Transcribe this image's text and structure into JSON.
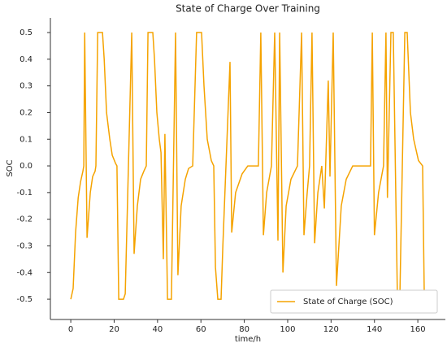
{
  "chart_data": {
    "type": "line",
    "title": "State of Charge Over Training",
    "xlabel": "time/h",
    "ylabel": "SOC",
    "x": [
      0,
      1.1,
      2.2,
      3.4,
      4.5,
      5.6,
      6,
      6.4,
      7.5,
      9,
      10.1,
      11.2,
      11.6,
      12.4,
      14.6,
      15.4,
      16.5,
      18,
      19.1,
      20.6,
      21.3,
      22.1,
      24.3,
      25.1,
      28.1,
      29.2,
      30.7,
      32.2,
      33.7,
      34.8,
      35.6,
      37.8,
      38.6,
      39.7,
      40.8,
      41.6,
      42.7,
      43.4,
      44.6,
      46.4,
      48.3,
      49.4,
      50.9,
      52.8,
      54.3,
      56.2,
      58,
      60.3,
      61.4,
      62.9,
      64.8,
      65.9,
      66.7,
      67.8,
      69.3,
      70.1,
      73.4,
      74.2,
      76,
      79,
      81.6,
      86.5,
      87.6,
      88.8,
      90.3,
      92.5,
      94,
      95.5,
      96.3,
      97.8,
      99.3,
      101.5,
      104.5,
      106.4,
      107.5,
      109,
      110.1,
      111.2,
      112.4,
      113.9,
      115.7,
      116.9,
      118.7,
      119.5,
      121,
      122.5,
      124.7,
      127,
      130,
      138.2,
      139,
      140,
      141.9,
      144.2,
      145.3,
      146,
      147.6,
      148.7,
      150.6,
      151.7,
      154,
      155.1,
      156.6,
      158.1,
      160.3,
      162.2,
      163
    ],
    "series": [
      {
        "name": "State of Charge (SOC)",
        "color": "#f5a300",
        "values": [
          -0.5,
          -0.46,
          -0.25,
          -0.12,
          -0.06,
          -0.02,
          0,
          0.5,
          -0.27,
          -0.1,
          -0.04,
          -0.02,
          0,
          0.5,
          0.5,
          0.4,
          0.2,
          0.1,
          0.04,
          0.01,
          0,
          -0.5,
          -0.5,
          -0.48,
          0.5,
          -0.33,
          -0.15,
          -0.05,
          -0.02,
          0,
          0.5,
          0.5,
          0.4,
          0.2,
          0.1,
          0.05,
          -0.35,
          0.12,
          -0.5,
          -0.5,
          0.5,
          -0.41,
          -0.15,
          -0.05,
          -0.01,
          0,
          0.5,
          0.5,
          0.3,
          0.1,
          0.02,
          0,
          -0.38,
          -0.5,
          -0.5,
          -0.3,
          0.39,
          -0.25,
          -0.1,
          -0.03,
          0,
          0,
          0.5,
          -0.26,
          -0.1,
          0,
          0.5,
          -0.28,
          0.5,
          -0.4,
          -0.15,
          -0.05,
          0,
          0.5,
          -0.26,
          -0.1,
          0,
          0.5,
          -0.29,
          -0.1,
          0,
          -0.16,
          0.32,
          -0.04,
          0.5,
          -0.45,
          -0.15,
          -0.05,
          0,
          0,
          0.5,
          -0.26,
          -0.1,
          0,
          0.5,
          -0.12,
          0.5,
          0.5,
          -0.5,
          -0.49,
          0.5,
          0.5,
          0.2,
          0.1,
          0.02,
          0,
          -0.5
        ]
      }
    ],
    "xlim": [
      -9.4,
      172.7
    ],
    "ylim": [
      -0.576,
      0.555
    ],
    "xticks": [
      0,
      20,
      40,
      60,
      80,
      100,
      120,
      140,
      160
    ],
    "yticks": [
      -0.5,
      -0.4,
      -0.3,
      -0.2,
      -0.1,
      {
        "value": 0,
        "label": "0.0"
      },
      0.1,
      0.2,
      0.3,
      0.4,
      0.5
    ],
    "legend": "lower right"
  }
}
